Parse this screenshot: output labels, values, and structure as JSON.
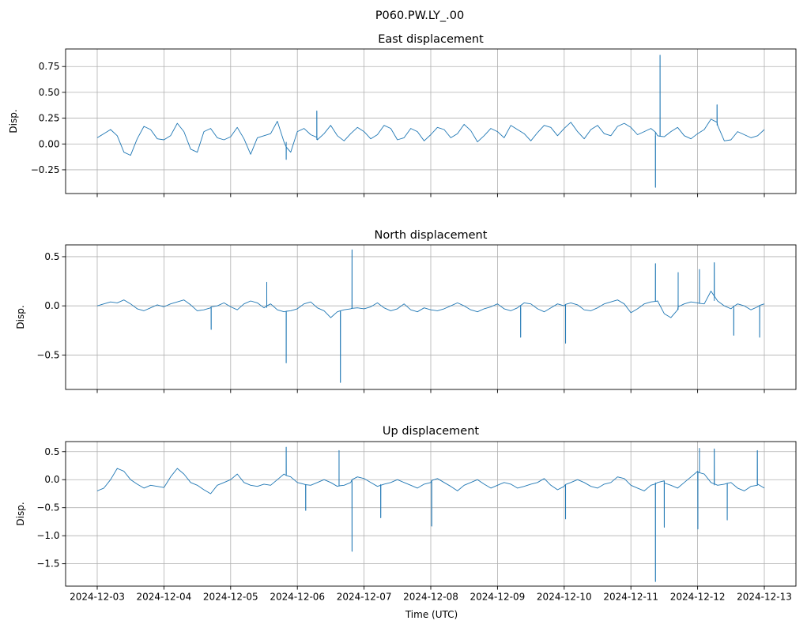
{
  "figure": {
    "suptitle": "P060.PW.LY_.00",
    "xlabel": "Time (UTC)",
    "line_color": "#1f77b4",
    "grid": true
  },
  "chart_data": [
    {
      "type": "line",
      "title": "East displacement",
      "xlabel": "",
      "ylabel": "Disp.",
      "x_start": "2024-12-03",
      "x_end": "2024-12-13",
      "x_ticks": [
        "2024-12-03",
        "2024-12-04",
        "2024-12-05",
        "2024-12-06",
        "2024-12-07",
        "2024-12-08",
        "2024-12-09",
        "2024-12-10",
        "2024-12-11",
        "2024-12-12",
        "2024-12-13"
      ],
      "y_ticks": [
        -0.25,
        0.0,
        0.25,
        0.5,
        0.75
      ],
      "y_tick_labels": [
        "−0.25",
        "0.00",
        "0.25",
        "0.50",
        "0.75"
      ],
      "ylim": [
        -0.48,
        0.92
      ],
      "series": [
        {
          "values": [
            0.06,
            0.1,
            0.14,
            0.08,
            -0.08,
            -0.11,
            0.05,
            0.17,
            0.14,
            0.05,
            0.04,
            0.08,
            0.2,
            0.12,
            -0.05,
            -0.08,
            0.12,
            0.15,
            0.06,
            0.04,
            0.07,
            0.16,
            0.05,
            -0.1,
            0.06,
            0.08,
            0.1,
            0.22,
            0.02,
            -0.08,
            0.12,
            0.15,
            0.09,
            0.04,
            0.1,
            0.18,
            0.08,
            0.03,
            0.1,
            0.16,
            0.12,
            0.05,
            0.09,
            0.18,
            0.15,
            0.04,
            0.06,
            0.15,
            0.12,
            0.03,
            0.09,
            0.16,
            0.14,
            0.06,
            0.1,
            0.19,
            0.13,
            0.02,
            0.08,
            0.15,
            0.12,
            0.06,
            0.18,
            0.14,
            0.1,
            0.03,
            0.11,
            0.18,
            0.16,
            0.08,
            0.15,
            0.21,
            0.12,
            0.05,
            0.14,
            0.18,
            0.1,
            0.08,
            0.17,
            0.2,
            0.16,
            0.09,
            0.12,
            0.15,
            0.08,
            0.07,
            0.12,
            0.16,
            0.08,
            0.05,
            0.1,
            0.14,
            0.24,
            0.18,
            0.03,
            0.04,
            0.12,
            0.09,
            0.06,
            0.08,
            0.14
          ]
        }
      ],
      "spikes": [
        {
          "x": "2024-12-11T10:30",
          "y": 0.86
        },
        {
          "x": "2024-12-11T08:50",
          "y": -0.42
        },
        {
          "x": "2024-12-12T07:00",
          "y": 0.38
        },
        {
          "x": "2024-12-06T07:00",
          "y": 0.32
        },
        {
          "x": "2024-12-05T20:00",
          "y": -0.15
        }
      ]
    },
    {
      "type": "line",
      "title": "North displacement",
      "xlabel": "",
      "ylabel": "Disp.",
      "x_start": "2024-12-03",
      "x_end": "2024-12-13",
      "x_ticks": [
        "2024-12-03",
        "2024-12-04",
        "2024-12-05",
        "2024-12-06",
        "2024-12-07",
        "2024-12-08",
        "2024-12-09",
        "2024-12-10",
        "2024-12-11",
        "2024-12-12",
        "2024-12-13"
      ],
      "y_ticks": [
        -0.5,
        0.0,
        0.5
      ],
      "y_tick_labels": [
        "−0.5",
        "0.0",
        "0.5"
      ],
      "ylim": [
        -0.85,
        0.62
      ],
      "series": [
        {
          "values": [
            0.0,
            0.02,
            0.04,
            0.03,
            0.06,
            0.02,
            -0.03,
            -0.05,
            -0.02,
            0.01,
            -0.01,
            0.02,
            0.04,
            0.06,
            0.01,
            -0.05,
            -0.04,
            -0.02,
            0.0,
            0.03,
            -0.01,
            -0.04,
            0.02,
            0.05,
            0.03,
            -0.02,
            0.02,
            -0.04,
            -0.06,
            -0.05,
            -0.03,
            0.02,
            0.04,
            -0.02,
            -0.05,
            -0.12,
            -0.06,
            -0.04,
            -0.03,
            -0.02,
            -0.03,
            -0.01,
            0.03,
            -0.02,
            -0.05,
            -0.03,
            0.02,
            -0.04,
            -0.06,
            -0.02,
            -0.04,
            -0.05,
            -0.03,
            0.0,
            0.03,
            0.0,
            -0.04,
            -0.06,
            -0.03,
            -0.01,
            0.02,
            -0.03,
            -0.05,
            -0.02,
            0.03,
            0.02,
            -0.03,
            -0.06,
            -0.02,
            0.02,
            0.0,
            0.03,
            0.01,
            -0.04,
            -0.05,
            -0.02,
            0.02,
            0.04,
            0.06,
            0.02,
            -0.07,
            -0.03,
            0.02,
            0.04,
            0.05,
            -0.08,
            -0.12,
            -0.04,
            0.02,
            0.04,
            0.03,
            0.02,
            0.15,
            0.05,
            0.0,
            -0.03,
            0.02,
            0.0,
            -0.04,
            -0.01,
            0.02
          ]
        }
      ],
      "spikes": [
        {
          "x": "2024-12-06T19:40",
          "y": 0.57
        },
        {
          "x": "2024-12-06T15:30",
          "y": -0.78
        },
        {
          "x": "2024-12-05T20:00",
          "y": -0.58
        },
        {
          "x": "2024-12-11T08:50",
          "y": 0.43
        },
        {
          "x": "2024-12-12T06:00",
          "y": 0.44
        },
        {
          "x": "2024-12-12T00:40",
          "y": 0.37
        },
        {
          "x": "2024-12-11T17:00",
          "y": 0.34
        },
        {
          "x": "2024-12-10T00:30",
          "y": -0.38
        },
        {
          "x": "2024-12-09T08:20",
          "y": -0.32
        },
        {
          "x": "2024-12-12T13:00",
          "y": -0.3
        },
        {
          "x": "2024-12-12T22:20",
          "y": -0.32
        },
        {
          "x": "2024-12-05T13:00",
          "y": 0.24
        },
        {
          "x": "2024-12-04T17:00",
          "y": -0.24
        }
      ]
    },
    {
      "type": "line",
      "title": "Up displacement",
      "xlabel": "Time (UTC)",
      "ylabel": "Disp.",
      "x_start": "2024-12-03",
      "x_end": "2024-12-13",
      "x_ticks": [
        "2024-12-03",
        "2024-12-04",
        "2024-12-05",
        "2024-12-06",
        "2024-12-07",
        "2024-12-08",
        "2024-12-09",
        "2024-12-10",
        "2024-12-11",
        "2024-12-12",
        "2024-12-13"
      ],
      "y_ticks": [
        -1.5,
        -1.0,
        -0.5,
        0.0,
        0.5
      ],
      "y_tick_labels": [
        "−1.5",
        "−1.0",
        "−0.5",
        "0.0",
        "0.5"
      ],
      "ylim": [
        -1.9,
        0.68
      ],
      "series": [
        {
          "values": [
            -0.2,
            -0.15,
            0.0,
            0.2,
            0.15,
            0.0,
            -0.08,
            -0.15,
            -0.1,
            -0.12,
            -0.14,
            0.05,
            0.2,
            0.1,
            -0.05,
            -0.1,
            -0.18,
            -0.25,
            -0.1,
            -0.05,
            0.0,
            0.1,
            -0.05,
            -0.1,
            -0.12,
            -0.08,
            -0.1,
            0.0,
            0.1,
            0.05,
            -0.05,
            -0.08,
            -0.1,
            -0.05,
            0.0,
            -0.05,
            -0.12,
            -0.1,
            -0.05,
            0.05,
            0.02,
            -0.05,
            -0.12,
            -0.08,
            -0.05,
            0.0,
            -0.05,
            -0.1,
            -0.15,
            -0.08,
            -0.05,
            0.02,
            -0.05,
            -0.12,
            -0.2,
            -0.1,
            -0.05,
            0.0,
            -0.08,
            -0.15,
            -0.1,
            -0.05,
            -0.08,
            -0.15,
            -0.12,
            -0.08,
            -0.05,
            0.02,
            -0.1,
            -0.18,
            -0.12,
            -0.05,
            0.0,
            -0.05,
            -0.12,
            -0.15,
            -0.08,
            -0.05,
            0.05,
            0.02,
            -0.1,
            -0.15,
            -0.2,
            -0.1,
            -0.05,
            -0.02,
            -0.1,
            -0.15,
            -0.05,
            0.05,
            0.15,
            0.1,
            -0.05,
            -0.1,
            -0.08,
            -0.05,
            -0.15,
            -0.2,
            -0.12,
            -0.08,
            -0.15
          ]
        }
      ],
      "spikes": [
        {
          "x": "2024-12-05T20:00",
          "y": 0.58
        },
        {
          "x": "2024-12-06T15:00",
          "y": 0.52
        },
        {
          "x": "2024-12-06T19:40",
          "y": -1.28
        },
        {
          "x": "2024-12-11T08:50",
          "y": -1.82
        },
        {
          "x": "2024-12-11T12:00",
          "y": -0.85
        },
        {
          "x": "2024-12-12T00:40",
          "y": 0.56
        },
        {
          "x": "2024-12-12T06:00",
          "y": 0.55
        },
        {
          "x": "2024-12-12T21:30",
          "y": 0.52
        },
        {
          "x": "2024-12-12T00:05",
          "y": -0.88
        },
        {
          "x": "2024-12-12T10:40",
          "y": -0.72
        },
        {
          "x": "2024-12-10T00:30",
          "y": -0.7
        },
        {
          "x": "2024-12-08T00:20",
          "y": -0.83
        },
        {
          "x": "2024-12-07T06:00",
          "y": -0.68
        },
        {
          "x": "2024-12-06T03:00",
          "y": -0.55
        }
      ]
    }
  ]
}
